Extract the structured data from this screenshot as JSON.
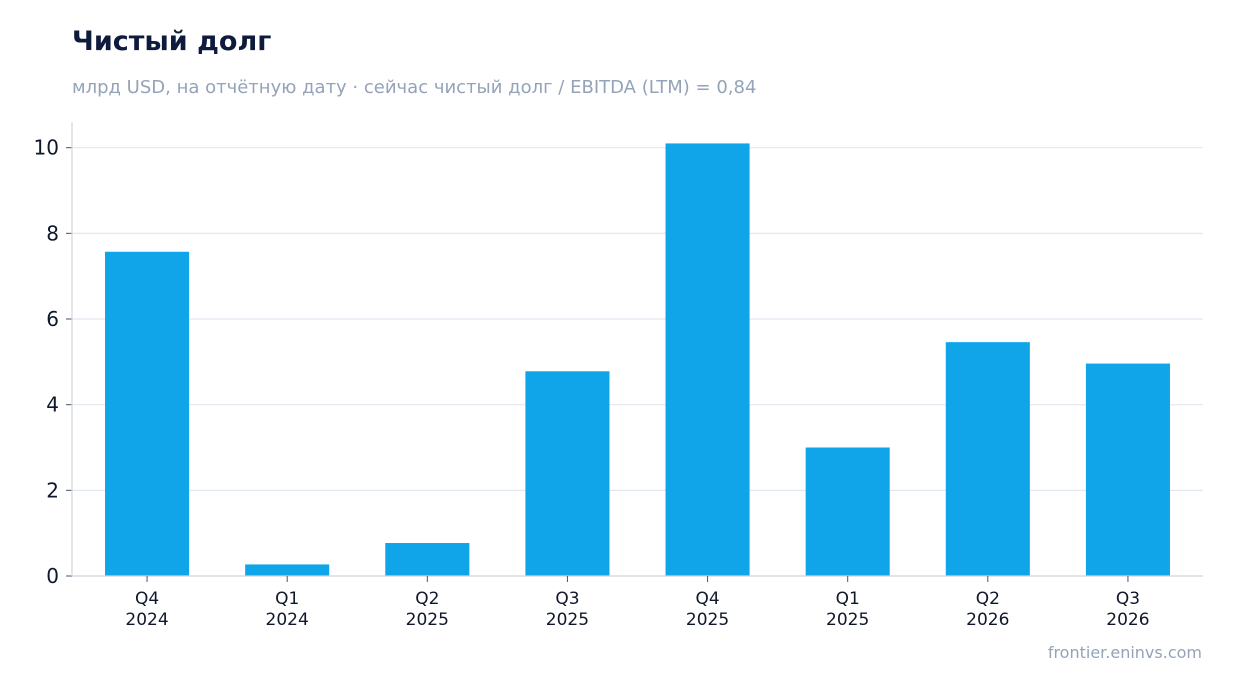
{
  "chart_data": {
    "type": "bar",
    "title": "Чистый долг",
    "subtitle": "млрд USD, на отчётную дату · сейчас чистый долг / EBITDA (LTM) = 0,84",
    "categories": [
      [
        "Q4",
        "2024"
      ],
      [
        "Q1",
        "2024"
      ],
      [
        "Q2",
        "2025"
      ],
      [
        "Q3",
        "2025"
      ],
      [
        "Q4",
        "2025"
      ],
      [
        "Q1",
        "2025"
      ],
      [
        "Q2",
        "2026"
      ],
      [
        "Q3",
        "2026"
      ]
    ],
    "values": [
      7.57,
      0.27,
      0.77,
      4.78,
      10.1,
      3.0,
      5.46,
      4.96
    ],
    "ylim": [
      0,
      10.6
    ],
    "yticks": [
      0,
      2,
      4,
      6,
      8,
      10
    ],
    "grid": true,
    "bar_color": "#10a5e9",
    "xlabel": "",
    "ylabel": ""
  },
  "footer": {
    "source": "frontier.eninvs.com"
  }
}
